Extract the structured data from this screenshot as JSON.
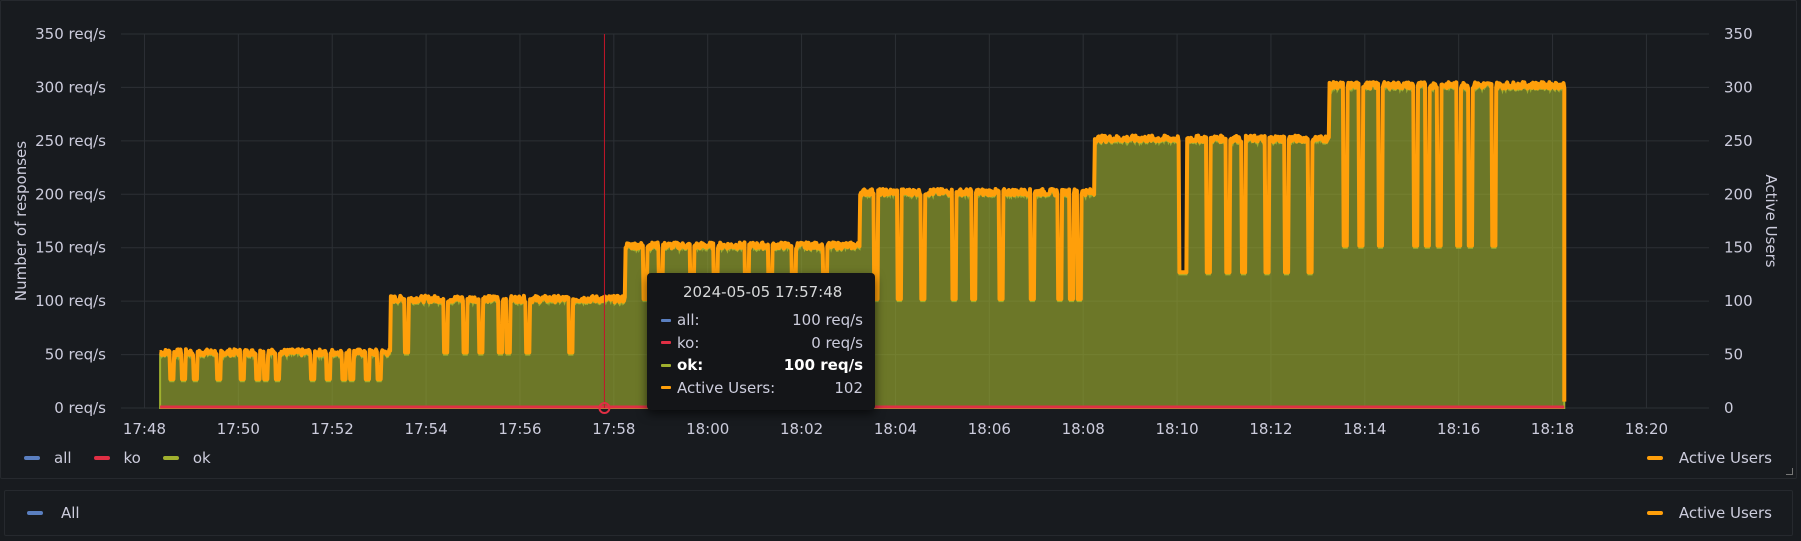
{
  "chart_data": {
    "type": "area",
    "ylabel": "Number of responses",
    "y2label": "Active Users",
    "ylim": [
      0,
      350
    ],
    "y2lim": [
      0,
      350
    ],
    "yticks": [
      "0 req/s",
      "50 req/s",
      "100 req/s",
      "150 req/s",
      "200 req/s",
      "250 req/s",
      "300 req/s",
      "350 req/s"
    ],
    "y2ticks": [
      "0",
      "50",
      "100",
      "150",
      "200",
      "250",
      "300",
      "350"
    ],
    "xticks": [
      "17:48",
      "17:50",
      "17:52",
      "17:54",
      "17:56",
      "17:58",
      "18:00",
      "18:02",
      "18:04",
      "18:06",
      "18:08",
      "18:10",
      "18:12",
      "18:14",
      "18:16",
      "18:18",
      "18:20"
    ],
    "grid": true,
    "x_start": "17:48:20",
    "x_end": "18:18:15",
    "steps": [
      {
        "from": "17:48:20",
        "to": "17:53:15",
        "value": 50
      },
      {
        "from": "17:53:15",
        "to": "17:58:15",
        "value": 100
      },
      {
        "from": "17:58:15",
        "to": "18:03:15",
        "value": 150
      },
      {
        "from": "18:03:15",
        "to": "18:08:15",
        "value": 200
      },
      {
        "from": "18:08:15",
        "to": "18:13:15",
        "value": 250
      },
      {
        "from": "18:13:15",
        "to": "18:18:15",
        "value": 300
      }
    ],
    "dips": [
      {
        "t": "17:48:35",
        "value": 25
      },
      {
        "t": "17:48:50",
        "value": 25
      },
      {
        "t": "17:49:05",
        "value": 25
      },
      {
        "t": "17:49:35",
        "value": 25
      },
      {
        "t": "17:50:05",
        "value": 25
      },
      {
        "t": "17:50:25",
        "value": 25
      },
      {
        "t": "17:50:35",
        "value": 25
      },
      {
        "t": "17:50:50",
        "value": 25
      },
      {
        "t": "17:51:35",
        "value": 25
      },
      {
        "t": "17:51:55",
        "value": 25
      },
      {
        "t": "17:52:15",
        "value": 25
      },
      {
        "t": "17:52:25",
        "value": 25
      },
      {
        "t": "17:52:45",
        "value": 25
      },
      {
        "t": "17:53:00",
        "value": 25
      },
      {
        "t": "17:53:35",
        "value": 50
      },
      {
        "t": "17:54:25",
        "value": 50
      },
      {
        "t": "17:54:50",
        "value": 50
      },
      {
        "t": "17:55:10",
        "value": 50
      },
      {
        "t": "17:55:35",
        "value": 50
      },
      {
        "t": "17:55:45",
        "value": 50
      },
      {
        "t": "17:56:10",
        "value": 50
      },
      {
        "t": "17:57:05",
        "value": 50
      },
      {
        "t": "17:58:40",
        "value": 100
      },
      {
        "t": "17:59:00",
        "value": 100
      },
      {
        "t": "17:59:40",
        "value": 100
      },
      {
        "t": "18:00:10",
        "value": 100
      },
      {
        "t": "18:00:50",
        "value": 100
      },
      {
        "t": "18:01:20",
        "value": 100
      },
      {
        "t": "18:01:50",
        "value": 100
      },
      {
        "t": "18:02:30",
        "value": 100
      },
      {
        "t": "18:03:35",
        "value": 100
      },
      {
        "t": "18:04:05",
        "value": 100
      },
      {
        "t": "18:04:35",
        "value": 100
      },
      {
        "t": "18:05:15",
        "value": 100
      },
      {
        "t": "18:05:40",
        "value": 100
      },
      {
        "t": "18:06:15",
        "value": 100
      },
      {
        "t": "18:06:55",
        "value": 100
      },
      {
        "t": "18:07:30",
        "value": 100
      },
      {
        "t": "18:07:45",
        "value": 100
      },
      {
        "t": "18:07:55",
        "value": 100
      },
      {
        "t": "18:10:05",
        "value": 125
      },
      {
        "t": "18:10:10",
        "value": 125
      },
      {
        "t": "18:10:40",
        "value": 125
      },
      {
        "t": "18:11:05",
        "value": 125
      },
      {
        "t": "18:11:25",
        "value": 125
      },
      {
        "t": "18:11:55",
        "value": 125
      },
      {
        "t": "18:12:20",
        "value": 125
      },
      {
        "t": "18:12:50",
        "value": 125
      },
      {
        "t": "18:13:35",
        "value": 150
      },
      {
        "t": "18:13:55",
        "value": 150
      },
      {
        "t": "18:14:20",
        "value": 150
      },
      {
        "t": "18:15:05",
        "value": 150
      },
      {
        "t": "18:15:20",
        "value": 150
      },
      {
        "t": "18:15:35",
        "value": 150
      },
      {
        "t": "18:16:00",
        "value": 150
      },
      {
        "t": "18:16:15",
        "value": 150
      },
      {
        "t": "18:16:45",
        "value": 150
      }
    ],
    "series": [
      {
        "name": "all",
        "color": "#5a7fc0"
      },
      {
        "name": "ko",
        "color": "#e02f44"
      },
      {
        "name": "ok",
        "color": "#a0b02e"
      },
      {
        "name": "Active Users",
        "color": "#ff9f0a"
      }
    ],
    "crosshair_time": "17:57:48"
  },
  "tooltip": {
    "title": "2024-05-05 17:57:48",
    "rows": [
      {
        "label": "all:",
        "value": "100 req/s",
        "color": "#5a7fc0"
      },
      {
        "label": "ko:",
        "value": "0 req/s",
        "color": "#e02f44"
      },
      {
        "label": "ok:",
        "value": "100 req/s",
        "color": "#a0b02e"
      },
      {
        "label": "Active Users:",
        "value": "102",
        "color": "#ff9f0a"
      }
    ]
  },
  "legend": {
    "left": [
      {
        "label": "all",
        "color": "#5a7fc0"
      },
      {
        "label": "ko",
        "color": "#e02f44"
      },
      {
        "label": "ok",
        "color": "#a0b02e"
      }
    ],
    "right": {
      "label": "Active Users",
      "color": "#ff9f0a"
    }
  },
  "bottom_legend": {
    "left": {
      "label": "All",
      "color": "#5a7fc0"
    },
    "right": {
      "label": "Active Users",
      "color": "#ff9f0a"
    }
  }
}
